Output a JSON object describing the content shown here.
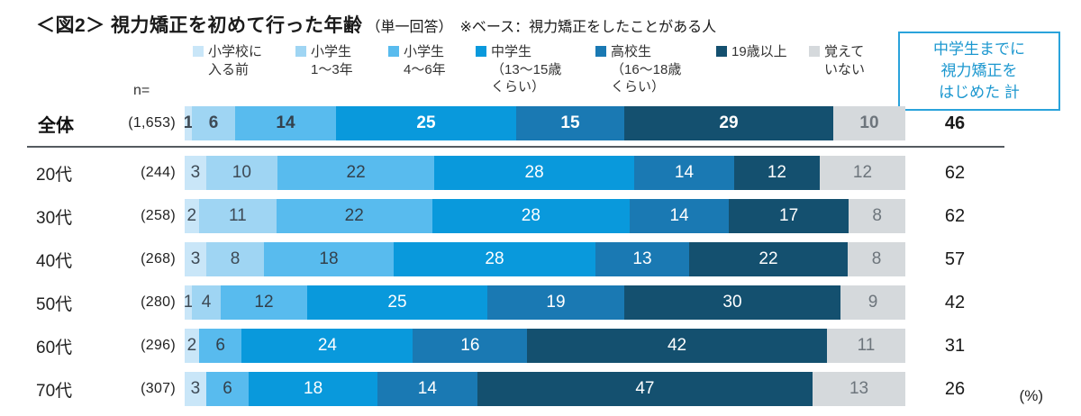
{
  "title": {
    "main": "＜図2＞ 視力矯正を初めて行った年齢",
    "note": "（単一回答）　※ベース：視力矯正をしたことがある人"
  },
  "n_label": "n=",
  "unit_label": "(%)",
  "summary_box": {
    "lines": [
      "中学生までに",
      "視力矯正を",
      "はじめた 計"
    ],
    "border_color": "#2aa3db",
    "text_color": "#1b97cf"
  },
  "chart_data": {
    "type": "bar",
    "subtype": "horizontal-stacked-100pct",
    "unit": "%",
    "categories": [
      "小学校に入る前",
      "小学生1〜3年",
      "小学生4〜6年",
      "中学生（13〜15歳くらい）",
      "高校生（16〜18歳くらい）",
      "19歳以上",
      "覚えていない"
    ],
    "legend_labels": [
      "小学校に\n入る前",
      "小学生\n1〜3年",
      "小学生\n4〜6年",
      "中学生\n（13〜15歳\nくらい）",
      "高校生\n（16〜18歳\nくらい）",
      "19歳以上",
      "覚えて\nいない"
    ],
    "colors": [
      "#c9e6f8",
      "#9fd5f3",
      "#58bbee",
      "#0999dc",
      "#1a79b3",
      "#14506f",
      "#d5d9dc"
    ],
    "label_colors": [
      "#3e4a55",
      "#3e4a55",
      "#33404b",
      "#ffffff",
      "#ffffff",
      "#ffffff",
      "#6d757c"
    ],
    "total_column_label": "中学生までに視力矯正をはじめた 計",
    "rows": [
      {
        "label": "全体",
        "n": "(1,653)",
        "values": [
          1,
          6,
          14,
          25,
          15,
          29,
          10
        ],
        "total": 46,
        "emphasis": true
      },
      {
        "label": "20代",
        "n": "(244)",
        "values": [
          3,
          10,
          22,
          28,
          14,
          12,
          12
        ],
        "total": 62,
        "emphasis": false
      },
      {
        "label": "30代",
        "n": "(258)",
        "values": [
          2,
          11,
          22,
          28,
          14,
          17,
          8
        ],
        "total": 62,
        "emphasis": false
      },
      {
        "label": "40代",
        "n": "(268)",
        "values": [
          3,
          8,
          18,
          28,
          13,
          22,
          8
        ],
        "total": 57,
        "emphasis": false
      },
      {
        "label": "50代",
        "n": "(280)",
        "values": [
          1,
          4,
          12,
          25,
          19,
          30,
          9
        ],
        "total": 42,
        "emphasis": false
      },
      {
        "label": "60代",
        "n": "(296)",
        "values": [
          2,
          0,
          6,
          24,
          16,
          42,
          11
        ],
        "total": 31,
        "emphasis": false
      },
      {
        "label": "70代",
        "n": "(307)",
        "values": [
          3,
          0,
          6,
          18,
          14,
          47,
          13
        ],
        "total": 26,
        "emphasis": false
      }
    ]
  }
}
